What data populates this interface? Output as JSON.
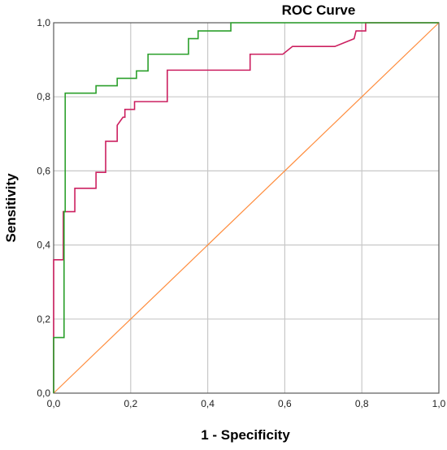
{
  "chart_data": {
    "type": "line",
    "title": "ROC Curve",
    "xlabel": "1 - Specificity",
    "ylabel": "Sensitivity",
    "xlim": [
      0,
      1
    ],
    "ylim": [
      0,
      1
    ],
    "grid": true,
    "x_ticks": [
      "0,0",
      "0,2",
      "0,4",
      "0,6",
      "0,8",
      "1,0"
    ],
    "y_ticks": [
      "0,0",
      "0,2",
      "0,4",
      "0,6",
      "0,8",
      "1,0"
    ],
    "series": [
      {
        "color": "#2ca02c",
        "points": [
          [
            0,
            0
          ],
          [
            0,
            0.15
          ],
          [
            0.027,
            0.15
          ],
          [
            0.027,
            0.49
          ],
          [
            0.03,
            0.49
          ],
          [
            0.03,
            0.81
          ],
          [
            0.11,
            0.81
          ],
          [
            0.11,
            0.83
          ],
          [
            0.165,
            0.83
          ],
          [
            0.165,
            0.85
          ],
          [
            0.215,
            0.85
          ],
          [
            0.215,
            0.87
          ],
          [
            0.245,
            0.87
          ],
          [
            0.245,
            0.915
          ],
          [
            0.35,
            0.915
          ],
          [
            0.35,
            0.957
          ],
          [
            0.375,
            0.957
          ],
          [
            0.375,
            0.978
          ],
          [
            0.46,
            0.978
          ],
          [
            0.46,
            1.0
          ],
          [
            1.0,
            1.0
          ]
        ]
      },
      {
        "color": "#cc2060",
        "points": [
          [
            0,
            0
          ],
          [
            0,
            0.36
          ],
          [
            0.025,
            0.36
          ],
          [
            0.025,
            0.49
          ],
          [
            0.055,
            0.49
          ],
          [
            0.055,
            0.553
          ],
          [
            0.11,
            0.553
          ],
          [
            0.11,
            0.596
          ],
          [
            0.135,
            0.596
          ],
          [
            0.135,
            0.68
          ],
          [
            0.165,
            0.68
          ],
          [
            0.165,
            0.723
          ],
          [
            0.18,
            0.745
          ],
          [
            0.185,
            0.745
          ],
          [
            0.185,
            0.766
          ],
          [
            0.21,
            0.766
          ],
          [
            0.21,
            0.787
          ],
          [
            0.295,
            0.787
          ],
          [
            0.295,
            0.872
          ],
          [
            0.51,
            0.872
          ],
          [
            0.51,
            0.915
          ],
          [
            0.595,
            0.915
          ],
          [
            0.62,
            0.936
          ],
          [
            0.73,
            0.936
          ],
          [
            0.78,
            0.957
          ],
          [
            0.785,
            0.978
          ],
          [
            0.81,
            0.978
          ],
          [
            0.81,
            1.0
          ],
          [
            1.0,
            1.0
          ]
        ]
      },
      {
        "color": "#ff8c3c",
        "points": [
          [
            0,
            0
          ],
          [
            1,
            1
          ]
        ]
      }
    ],
    "frame_color": "#5a5a5a",
    "grid_color": "#c8c8c8"
  }
}
